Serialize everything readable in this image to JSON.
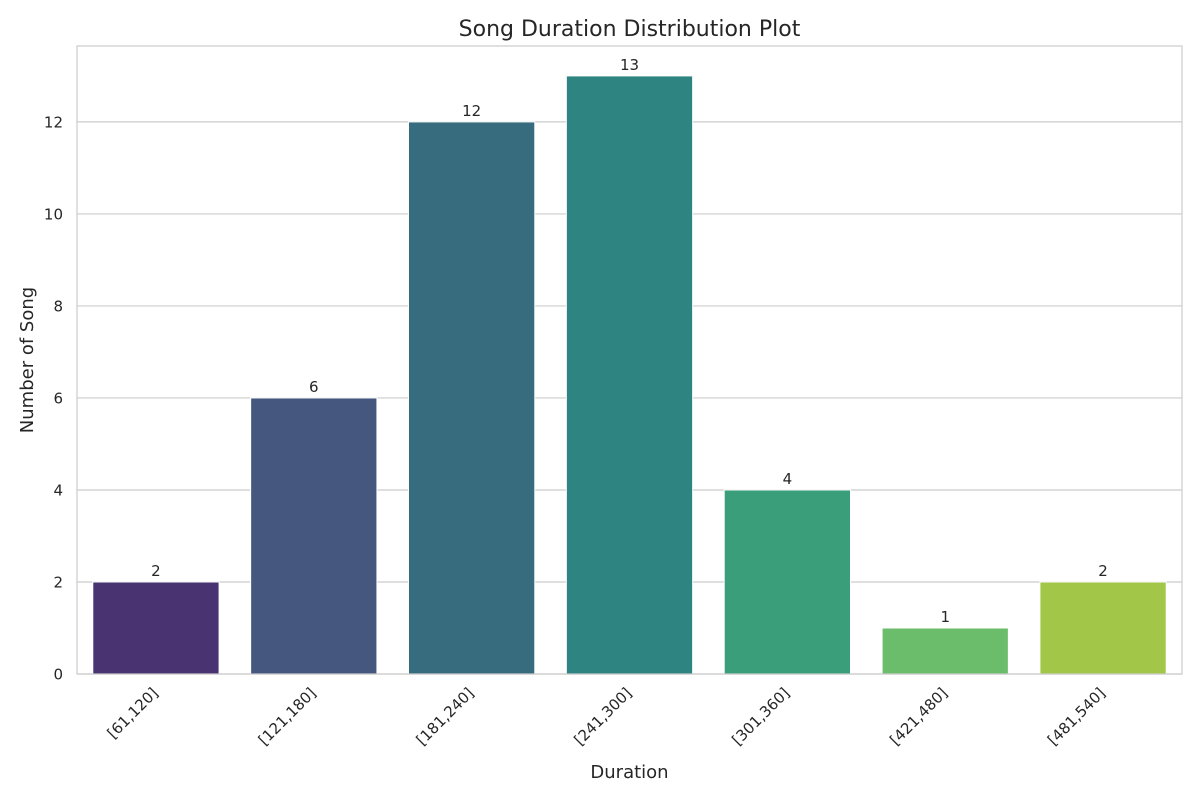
{
  "chart_data": {
    "type": "bar",
    "title": "Song Duration Distribution Plot",
    "xlabel": "Duration",
    "ylabel": "Number of Song",
    "categories": [
      "[61,120]",
      "[121,180]",
      "[181,240]",
      "[241,300]",
      "[301,360]",
      "[421,480]",
      "[481,540]"
    ],
    "values": [
      2,
      6,
      12,
      13,
      4,
      1,
      2
    ],
    "data_labels": [
      "2",
      "6",
      "12",
      "13",
      "4",
      "1",
      "2"
    ],
    "colors": [
      "#4a3371",
      "#45577f",
      "#376c7e",
      "#2e8480",
      "#3a9e7a",
      "#6bbd6b",
      "#a2c748"
    ],
    "yticks": [
      0,
      2,
      4,
      6,
      8,
      10,
      12
    ],
    "ylim": [
      0,
      13.65
    ],
    "grid": "horizontal",
    "grid_color": "#cccccc",
    "spine_color": "#cccccc"
  }
}
